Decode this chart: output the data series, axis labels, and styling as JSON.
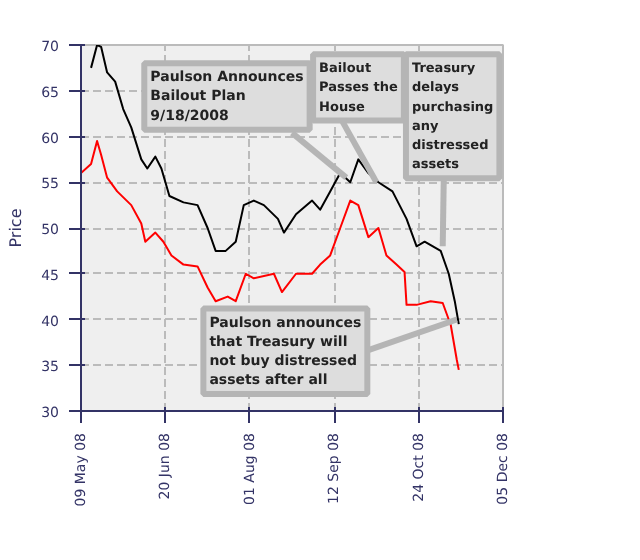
{
  "chart_data": {
    "type": "line",
    "ylabel": "Price",
    "xlim": [
      "2008-05-09",
      "2008-12-05"
    ],
    "xticks": [
      {
        "value": "2008-05-09",
        "label": "09 May 08"
      },
      {
        "value": "2008-06-20",
        "label": "20 Jun 08"
      },
      {
        "value": "2008-08-01",
        "label": "01 Aug 08"
      },
      {
        "value": "2008-09-12",
        "label": "12 Sep 08"
      },
      {
        "value": "2008-10-24",
        "label": "24 Oct 08"
      },
      {
        "value": "2008-12-05",
        "label": "05 Dec 08"
      }
    ],
    "ylim": [
      30,
      70
    ],
    "yticks": [
      30,
      35,
      40,
      45,
      50,
      55,
      60,
      65,
      70
    ],
    "grid": true,
    "line_style": "solid",
    "series": [
      {
        "color": "#000000",
        "x": [
          "2008-05-14",
          "2008-05-17",
          "2008-05-19",
          "2008-05-22",
          "2008-05-26",
          "2008-05-30",
          "2008-06-03",
          "2008-06-08",
          "2008-06-11",
          "2008-06-15",
          "2008-06-18",
          "2008-06-22",
          "2008-06-29",
          "2008-07-06",
          "2008-07-11",
          "2008-07-15",
          "2008-07-20",
          "2008-07-25",
          "2008-07-29",
          "2008-08-03",
          "2008-08-08",
          "2008-08-15",
          "2008-08-18",
          "2008-08-24",
          "2008-09-01",
          "2008-09-05",
          "2008-09-10",
          "2008-09-15",
          "2008-09-20",
          "2008-09-24",
          "2008-09-29",
          "2008-10-04",
          "2008-10-11",
          "2008-10-18",
          "2008-10-23",
          "2008-10-27",
          "2008-11-04",
          "2008-11-08",
          "2008-11-11",
          "2008-11-13"
        ],
        "values": [
          67.5,
          70,
          69.8,
          67,
          66,
          63,
          61,
          57.5,
          56.5,
          57.8,
          56.5,
          53.5,
          52.8,
          52.5,
          50,
          47.5,
          47.5,
          48.5,
          52.5,
          53,
          52.5,
          51,
          49.5,
          51.5,
          53,
          52,
          54,
          56,
          55,
          57.5,
          56,
          55,
          54,
          51,
          48,
          48.5,
          47.5,
          45,
          42,
          39.5
        ]
      },
      {
        "color": "#ff0000",
        "x": [
          "2008-05-09",
          "2008-05-14",
          "2008-05-17",
          "2008-05-19",
          "2008-05-22",
          "2008-05-27",
          "2008-06-03",
          "2008-06-08",
          "2008-06-10",
          "2008-06-15",
          "2008-06-19",
          "2008-06-23",
          "2008-06-29",
          "2008-07-06",
          "2008-07-11",
          "2008-07-15",
          "2008-07-21",
          "2008-07-25",
          "2008-07-30",
          "2008-08-03",
          "2008-08-13",
          "2008-08-17",
          "2008-08-24",
          "2008-09-01",
          "2008-09-05",
          "2008-09-10",
          "2008-09-15",
          "2008-09-20",
          "2008-09-24",
          "2008-09-29",
          "2008-10-04",
          "2008-10-08",
          "2008-10-13",
          "2008-10-17",
          "2008-10-18",
          "2008-10-23",
          "2008-10-30",
          "2008-11-05",
          "2008-11-09",
          "2008-11-12",
          "2008-11-13"
        ],
        "values": [
          56,
          57,
          59.5,
          58,
          55.5,
          54,
          52.5,
          50.5,
          48.5,
          49.5,
          48.5,
          47,
          46,
          45.8,
          43.5,
          42,
          42.5,
          42,
          45,
          44.5,
          45,
          43,
          45,
          45,
          46,
          47,
          50,
          53,
          52.5,
          49,
          50,
          47,
          46,
          45.2,
          41.6,
          41.6,
          42,
          41.8,
          39.4,
          35.6,
          34.5
        ]
      }
    ],
    "annotations": [
      {
        "text": "Paulson Announces Bailout Plan 9/18/2008",
        "x": "2008-09-18",
        "y": 55.5
      },
      {
        "text": "Bailout Passes the House",
        "x": "2008-10-03",
        "y": 55
      },
      {
        "text": "Treasury delays purchasing any distressed assets",
        "x": "2008-11-05",
        "y": 48
      },
      {
        "text": "Paulson announces that Treasury will not buy distressed assets after all",
        "x": "2008-11-12",
        "y": 40
      }
    ]
  }
}
